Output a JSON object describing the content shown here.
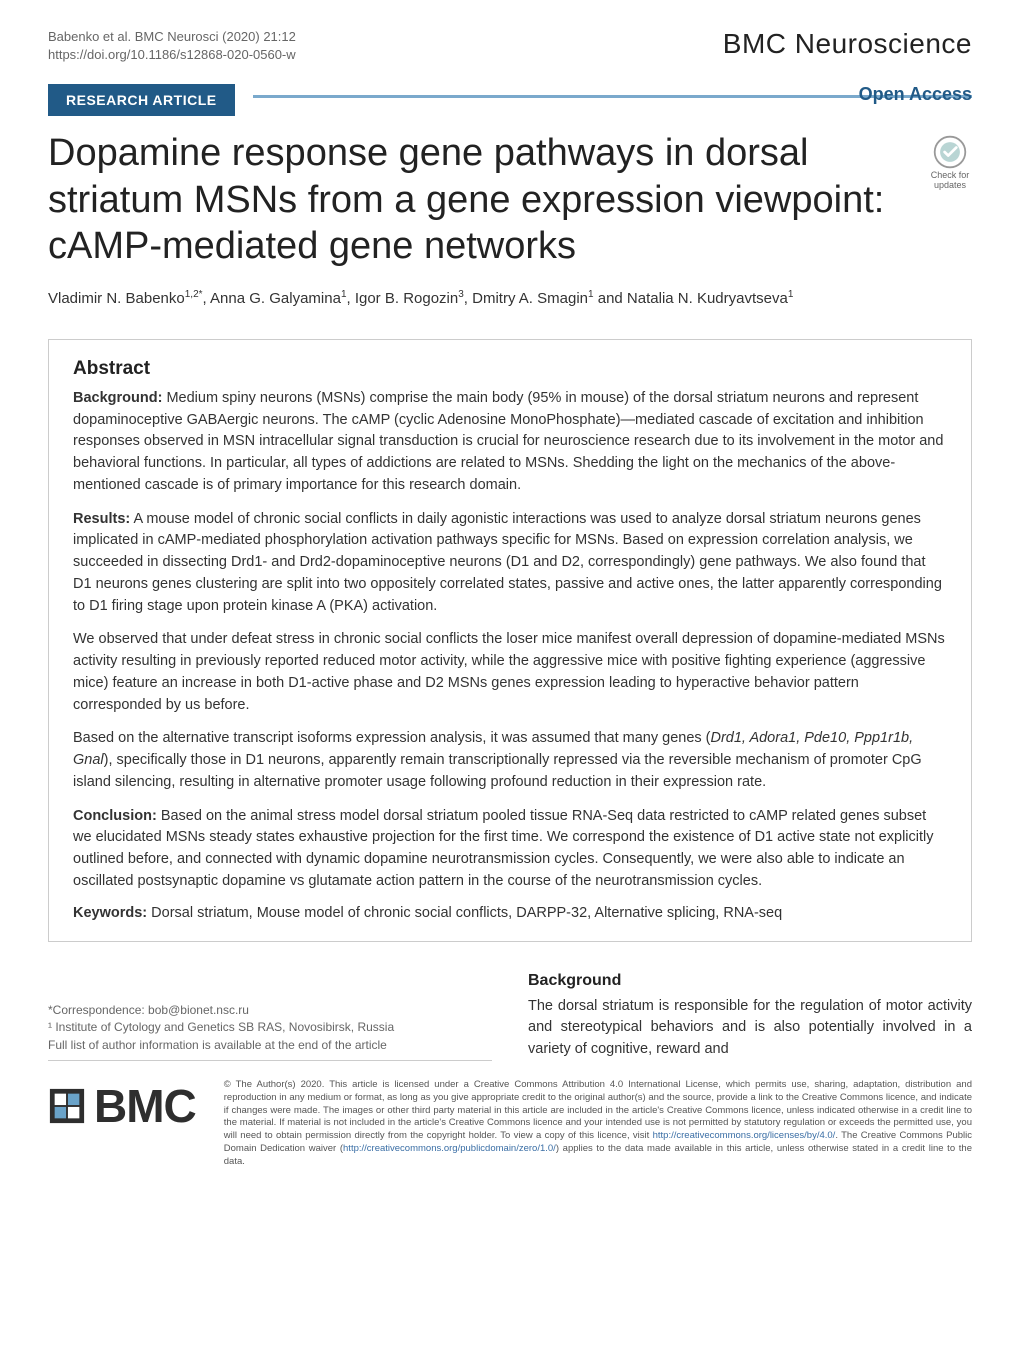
{
  "header": {
    "citation_line": "Babenko et al. BMC Neurosci          (2020) 21:12",
    "doi_line": "https://doi.org/10.1186/s12868-020-0560-w",
    "journal": "BMC Neuroscience"
  },
  "badges": {
    "research": "RESEARCH ARTICLE",
    "open_access": "Open Access"
  },
  "title": "Dopamine response gene pathways in dorsal striatum MSNs from a gene expression viewpoint: cAMP-mediated gene networks",
  "check_updates": {
    "line1": "Check for",
    "line2": "updates"
  },
  "authors_html": "Vladimir N. Babenko<sup>1,2*</sup>, Anna G. Galyamina<sup>1</sup>, Igor B. Rogozin<sup>3</sup>, Dmitry A. Smagin<sup>1</sup> and Natalia N. Kudryavtseva<sup>1</sup>",
  "abstract": {
    "heading": "Abstract",
    "background_label": "Background:",
    "background": "Medium spiny neurons (MSNs) comprise the main body (95% in mouse) of the dorsal striatum neurons and represent dopaminoceptive GABAergic neurons. The cAMP (cyclic Adenosine MonoPhosphate)—mediated cascade of excitation and inhibition responses observed in MSN intracellular signal transduction is crucial for neuroscience research due to its involvement in the motor and behavioral functions. In particular, all types of addictions are related to MSNs. Shedding the light on the mechanics of the above-mentioned cascade is of primary importance for this research domain.",
    "results_label": "Results:",
    "results_p1": "A mouse model of chronic social conflicts in daily agonistic interactions was used to analyze dorsal striatum neurons genes implicated in cAMP-mediated phosphorylation activation pathways specific for MSNs. Based on expression correlation analysis, we succeeded in dissecting Drd1- and Drd2-dopaminoceptive neurons (D1 and D2, correspondingly) gene pathways. We also found that D1 neurons genes clustering are split into two oppositely correlated states, passive and active ones, the latter apparently corresponding to D1 firing stage upon protein kinase A (PKA) activation.",
    "results_p2": "We observed that under defeat stress in chronic social conflicts the loser mice manifest overall depression of dopamine-mediated MSNs activity resulting in previously reported reduced motor activity, while the aggressive mice with positive fighting experience (aggressive mice) feature an increase in both D1-active phase and D2 MSNs genes expression leading to hyperactive behavior pattern corresponded by us before.",
    "results_p3_pre": "Based on the alternative transcript isoforms expression analysis, it was assumed that many genes (",
    "results_p3_genes": "Drd1, Adora1, Pde10, Ppp1r1b, Gnal",
    "results_p3_post": "), specifically those in D1 neurons, apparently remain transcriptionally repressed via the reversible mechanism of promoter CpG island silencing, resulting in alternative promoter usage following profound reduction in their expression rate.",
    "conclusion_label": "Conclusion:",
    "conclusion": "Based on the animal stress model dorsal striatum pooled tissue RNA-Seq data restricted to cAMP related genes subset we elucidated MSNs steady states exhaustive projection for the first time. We correspond the existence of D1 active state not explicitly outlined before, and connected with dynamic dopamine neurotransmission cycles. Consequently, we were also able to indicate an oscillated postsynaptic dopamine vs glutamate action pattern in the course of the neurotransmission cycles.",
    "keywords_label": "Keywords:",
    "keywords": "Dorsal striatum, Mouse model of chronic social conflicts, DARPP-32, Alternative splicing, RNA-seq"
  },
  "correspondence": {
    "line1": "*Correspondence:  bob@bionet.nsc.ru",
    "line2": "¹ Institute of Cytology and Genetics SB RAS, Novosibirsk, Russia",
    "line3": "Full list of author information is available at the end of the article"
  },
  "body": {
    "background_heading": "Background",
    "background_text": "The dorsal striatum is responsible for the regulation of motor activity and stereotypical behaviors and is also potentially involved in a variety of cognitive, reward and"
  },
  "footer": {
    "bmc": "BMC",
    "license_pre": "© The Author(s) 2020. This article is licensed under a Creative Commons Attribution 4.0 International License, which permits use, sharing, adaptation, distribution and reproduction in any medium or format, as long as you give appropriate credit to the original author(s) and the source, provide a link to the Creative Commons licence, and indicate if changes were made. The images or other third party material in this article are included in the article's Creative Commons licence, unless indicated otherwise in a credit line to the material. If material is not included in the article's Creative Commons licence and your intended use is not permitted by statutory regulation or exceeds the permitted use, you will need to obtain permission directly from the copyright holder. To view a copy of this licence, visit ",
    "license_link1": "http://creativecommons.org/licenses/by/4.0/",
    "license_mid": ". The Creative Commons Public Domain Dedication waiver (",
    "license_link2": "http://creativecommons.org/publicdomain/zero/1.0/",
    "license_post": ") applies to the data made available in this article, unless otherwise stated in a credit line to the data."
  },
  "colors": {
    "badge_bg": "#215a87",
    "accent_line": "#7aa9cc",
    "link": "#3a6ea5",
    "text": "#333333",
    "heading": "#222222",
    "muted": "#666666",
    "border": "#cccccc"
  }
}
